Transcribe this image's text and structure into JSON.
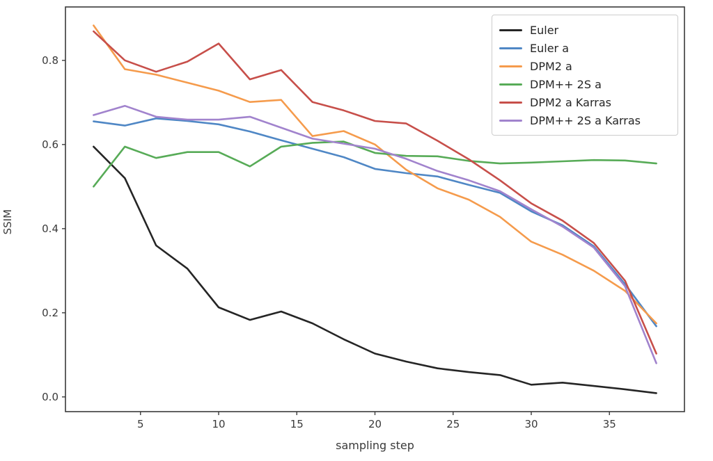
{
  "figure": {
    "background": "#ffffff",
    "border_color": "#3a3a3a"
  },
  "chart_data": {
    "type": "line",
    "title": "",
    "xlabel": "sampling step",
    "ylabel": "SSIM",
    "xlim": [
      0.2,
      39.8
    ],
    "ylim": [
      -0.035,
      0.927
    ],
    "grid": false,
    "legend_position": "upper right",
    "x_ticks": [
      5,
      10,
      15,
      20,
      25,
      30,
      35
    ],
    "y_ticks": [
      0.0,
      0.2,
      0.4,
      0.6,
      0.8
    ],
    "y_tick_labels": [
      "0.0",
      "0.2",
      "0.4",
      "0.6",
      "0.8"
    ],
    "x": [
      2,
      4,
      6,
      8,
      10,
      12,
      14,
      16,
      18,
      20,
      22,
      24,
      26,
      28,
      30,
      32,
      34,
      36,
      38
    ],
    "series": [
      {
        "name": "Euler",
        "color": "#252525",
        "values": [
          0.595,
          0.52,
          0.36,
          0.305,
          0.213,
          0.183,
          0.203,
          0.175,
          0.137,
          0.103,
          0.084,
          0.068,
          0.059,
          0.052,
          0.029,
          0.034,
          0.026,
          0.018,
          0.009
        ]
      },
      {
        "name": "Euler a",
        "color": "#4f87c5",
        "values": [
          0.655,
          0.645,
          0.662,
          0.656,
          0.648,
          0.631,
          0.61,
          0.59,
          0.57,
          0.542,
          0.532,
          0.524,
          0.504,
          0.485,
          0.441,
          0.408,
          0.358,
          0.268,
          0.168
        ]
      },
      {
        "name": "DPM2 a",
        "color": "#f59b4c",
        "values": [
          0.883,
          0.779,
          0.766,
          0.747,
          0.728,
          0.701,
          0.706,
          0.62,
          0.632,
          0.6,
          0.54,
          0.496,
          0.469,
          0.428,
          0.369,
          0.338,
          0.3,
          0.252,
          0.175
        ]
      },
      {
        "name": "DPM++ 2S a",
        "color": "#57ab57",
        "values": [
          0.5,
          0.595,
          0.568,
          0.582,
          0.582,
          0.548,
          0.595,
          0.604,
          0.607,
          0.58,
          0.573,
          0.572,
          0.561,
          0.555,
          0.557,
          0.56,
          0.563,
          0.562,
          0.555
        ]
      },
      {
        "name": "DPM2 a Karras",
        "color": "#c74f4a",
        "values": [
          0.869,
          0.8,
          0.773,
          0.797,
          0.84,
          0.755,
          0.777,
          0.701,
          0.681,
          0.656,
          0.65,
          0.609,
          0.565,
          0.515,
          0.46,
          0.419,
          0.366,
          0.276,
          0.103
        ]
      },
      {
        "name": "DPM++ 2S a Karras",
        "color": "#a183cd",
        "values": [
          0.67,
          0.692,
          0.666,
          0.659,
          0.659,
          0.666,
          0.64,
          0.614,
          0.602,
          0.59,
          0.566,
          0.537,
          0.515,
          0.489,
          0.446,
          0.405,
          0.355,
          0.263,
          0.08
        ]
      }
    ]
  }
}
